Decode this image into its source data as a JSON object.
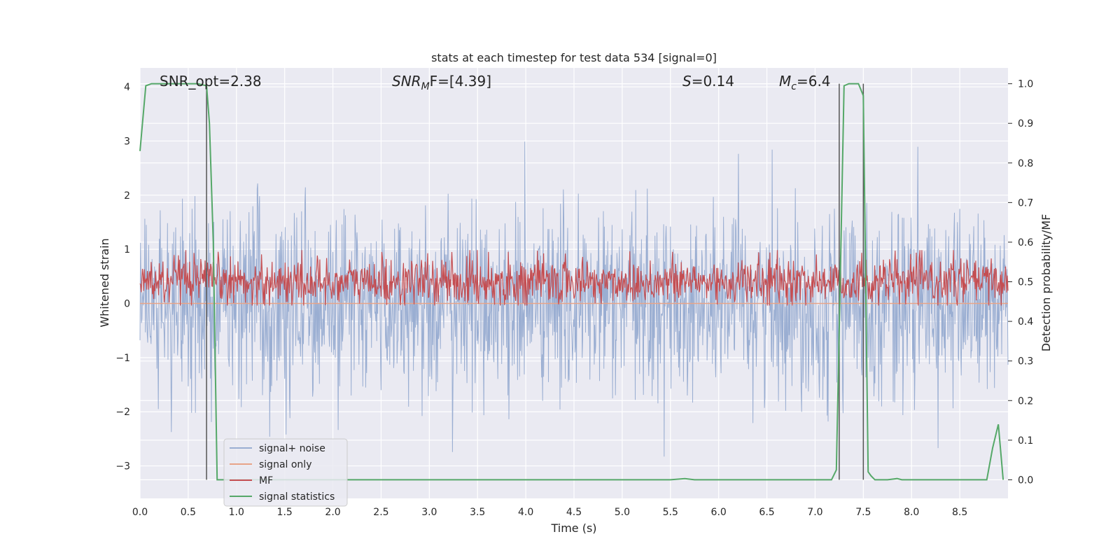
{
  "chart_data": {
    "type": "line",
    "title": "stats at each timestep for test data 534 [signal=0]",
    "xlabel": "Time (s)",
    "ylabel_left": "Whitened strain",
    "ylabel_right": "Detection probability/MF",
    "xlim": [
      0.0,
      9.0
    ],
    "ylim_left": [
      -3.6,
      4.35
    ],
    "ylim_right": [
      -0.047,
      1.04
    ],
    "x_ticks": [
      "0.0",
      "0.5",
      "1.0",
      "1.5",
      "2.0",
      "2.5",
      "3.0",
      "3.5",
      "4.0",
      "4.5",
      "5.0",
      "5.5",
      "6.0",
      "6.5",
      "7.0",
      "7.5",
      "8.0",
      "8.5"
    ],
    "y_ticks_left": [
      "4",
      "3",
      "2",
      "1",
      "0",
      "−1",
      "−2",
      "−3"
    ],
    "y_ticks_right": [
      "1.0",
      "0.9",
      "0.8",
      "0.7",
      "0.6",
      "0.5",
      "0.4",
      "0.3",
      "0.2",
      "0.1",
      "0.0"
    ],
    "grid": true,
    "legend_position": "lower-left",
    "annotations": {
      "snr_opt": "SNR_opt=2.38",
      "snr_mf_main": "SNR",
      "snr_mf_sub": "M",
      "snr_mf_rest": "F=[4.39]",
      "s_main": "S",
      "s_rest": "=0.14",
      "mc_main": "M",
      "mc_sub": "c",
      "mc_rest": "=6.4"
    },
    "vertical_lines_x": [
      0.69,
      7.25,
      7.5
    ],
    "series": [
      {
        "name": "signal+ noise",
        "color": "#9aaed2",
        "axis": "left",
        "kind": "noise",
        "amplitude_typical": 1.7,
        "amplitude_peak": 3.3
      },
      {
        "name": "signal only",
        "color": "#e8a488",
        "axis": "left",
        "values_constant": 0.0
      },
      {
        "name": "MF",
        "color": "#c44e52",
        "axis": "right",
        "kind": "noise_band",
        "center": 0.5,
        "spread": 0.05,
        "peak": 0.58
      },
      {
        "name": "signal statistics",
        "color": "#55a868",
        "axis": "right",
        "x": [
          0.0,
          0.06,
          0.12,
          0.2,
          0.4,
          0.6,
          0.69,
          0.72,
          0.76,
          0.8,
          0.82,
          0.85,
          1.0,
          2.0,
          3.0,
          4.0,
          5.0,
          5.5,
          5.65,
          5.75,
          6.0,
          7.0,
          7.17,
          7.22,
          7.26,
          7.3,
          7.35,
          7.45,
          7.5,
          7.55,
          7.58,
          7.62,
          7.75,
          7.85,
          7.9,
          7.95,
          8.5,
          8.78,
          8.84,
          8.9,
          8.95
        ],
        "y": [
          0.83,
          0.995,
          1.0,
          1.0,
          1.0,
          1.0,
          0.995,
          0.9,
          0.6,
          0.0,
          0.0,
          0.0,
          0.0,
          0.0,
          0.0,
          0.0,
          0.0,
          0.0,
          0.003,
          0.0,
          0.0,
          0.0,
          0.0,
          0.025,
          0.5,
          0.995,
          1.0,
          1.0,
          0.97,
          0.02,
          0.01,
          0.0,
          0.0,
          0.003,
          0.0,
          0.0,
          0.0,
          0.0,
          0.08,
          0.14,
          0.0
        ]
      }
    ]
  }
}
